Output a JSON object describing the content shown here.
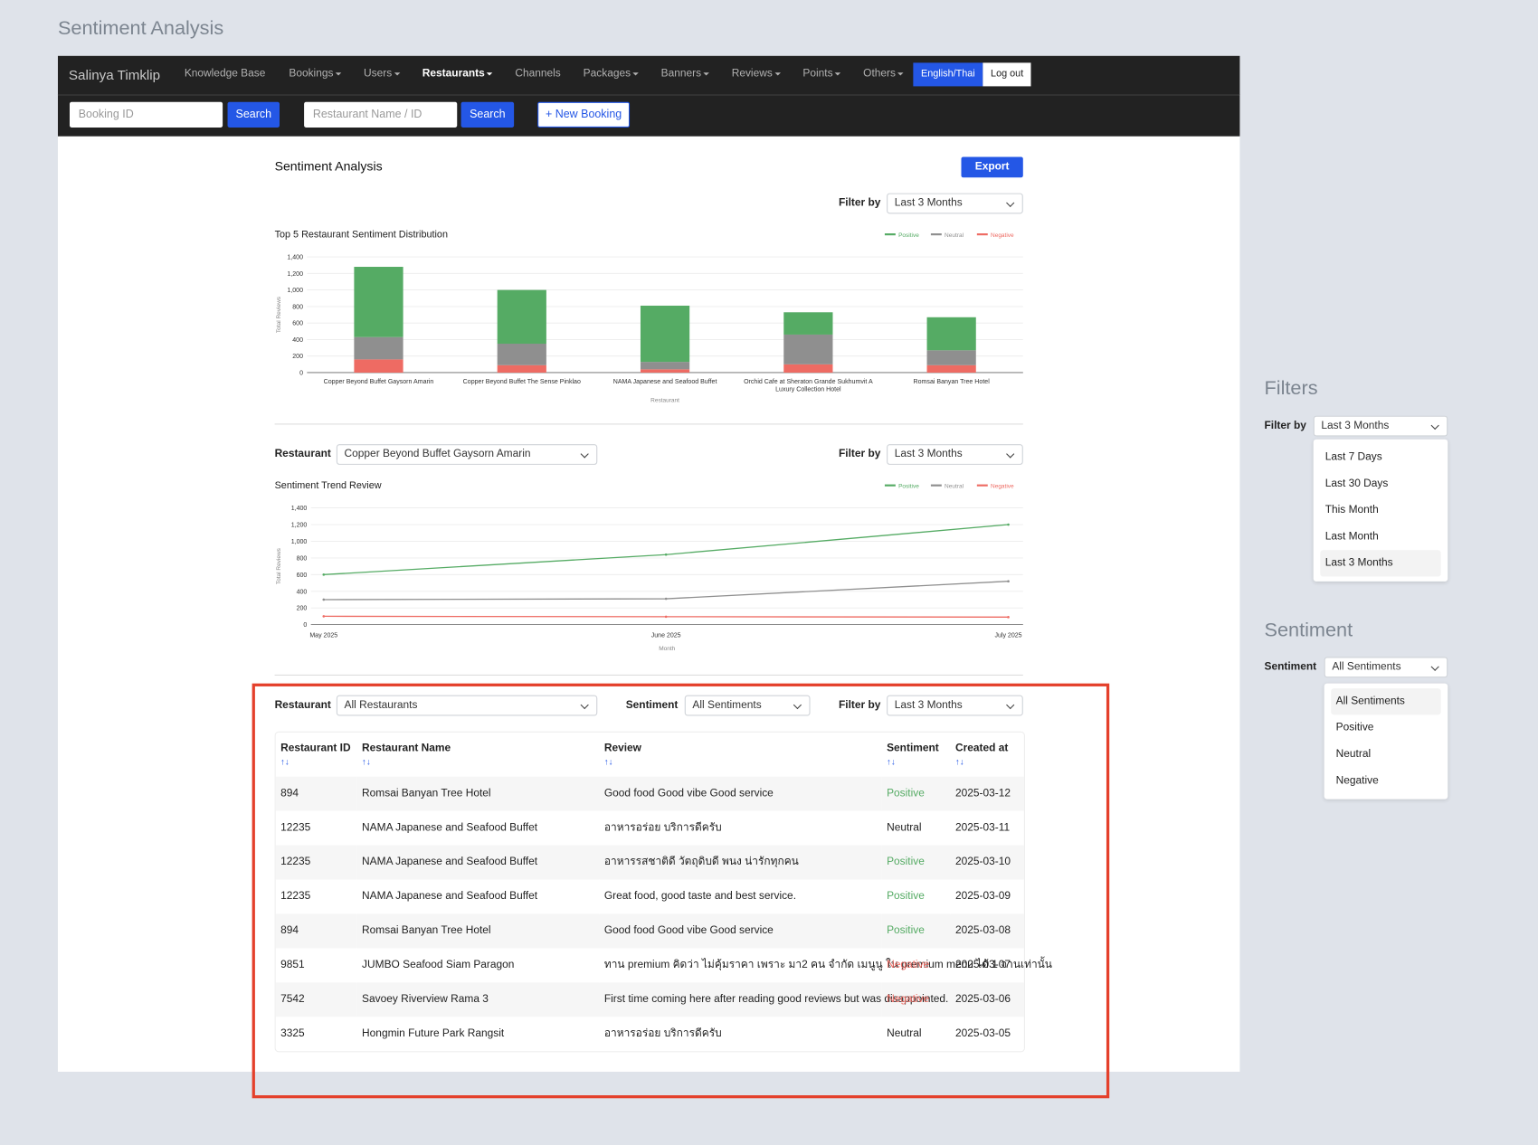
{
  "page_title": "Sentiment Analysis",
  "navbar": {
    "brand": "Salinya Timklip",
    "items": [
      {
        "label": "Knowledge Base",
        "dropdown": false,
        "active": false
      },
      {
        "label": "Bookings",
        "dropdown": true,
        "active": false
      },
      {
        "label": "Users",
        "dropdown": true,
        "active": false
      },
      {
        "label": "Restaurants",
        "dropdown": true,
        "active": true
      },
      {
        "label": "Channels",
        "dropdown": false,
        "active": false
      },
      {
        "label": "Packages",
        "dropdown": true,
        "active": false
      },
      {
        "label": "Banners",
        "dropdown": true,
        "active": false
      },
      {
        "label": "Reviews",
        "dropdown": true,
        "active": false
      },
      {
        "label": "Points",
        "dropdown": true,
        "active": false
      },
      {
        "label": "Others",
        "dropdown": true,
        "active": false
      }
    ],
    "language": "English/Thai",
    "logout": "Log out"
  },
  "searchbar": {
    "booking_placeholder": "Booking ID",
    "booking_search": "Search",
    "restaurant_placeholder": "Restaurant Name / ID",
    "restaurant_search": "Search",
    "new_booking": "+ New Booking"
  },
  "header": {
    "title": "Sentiment Analysis",
    "export": "Export",
    "filter_label": "Filter by",
    "filter_value": "Last 3 Months"
  },
  "distribution_chart": {
    "type": "bar",
    "title": "Top 5 Restaurant Sentiment Distribution",
    "y_label": "Total Reviews",
    "x_label": "Restaurant",
    "categories": [
      "Copper Beyond Buffet Gaysorn Amarin",
      "Copper Beyond Buffet The Sense Pinklao",
      "NAMA Japanese and Seafood Buffet",
      "Orchid Cafe at Sheraton Grande Sukhumvit A Luxury Collection Hotel",
      "Romsai Banyan Tree Hotel"
    ],
    "series": [
      {
        "name": "Positive",
        "color": "#55ab64",
        "values": [
          850,
          650,
          680,
          270,
          400
        ]
      },
      {
        "name": "Neutral",
        "color": "#8f8f8f",
        "values": [
          270,
          260,
          90,
          360,
          180
        ]
      },
      {
        "name": "Negative",
        "color": "#ee6b63",
        "values": [
          160,
          90,
          40,
          100,
          90
        ]
      }
    ],
    "ylim": [
      0,
      1400
    ],
    "yticks": [
      0,
      200,
      400,
      600,
      800,
      {
        "value": 1000,
        "label": "1,000"
      },
      {
        "value": 1200,
        "label": "1,200"
      },
      {
        "value": 1400,
        "label": "1,400"
      }
    ],
    "grid": true
  },
  "trend_filters": {
    "restaurant_label": "Restaurant",
    "restaurant_value": "Copper Beyond Buffet Gaysorn Amarin",
    "filter_label": "Filter by",
    "filter_value": "Last 3 Months"
  },
  "trend_chart": {
    "type": "line",
    "title": "Sentiment Trend Review",
    "y_label": "Total Reviews",
    "x_label": "Month",
    "categories": [
      "May 2025",
      "June 2025",
      "July 2025"
    ],
    "series": [
      {
        "name": "Positive",
        "color": "#55ab64",
        "values": [
          600,
          840,
          1200
        ]
      },
      {
        "name": "Neutral",
        "color": "#8f8f8f",
        "values": [
          300,
          310,
          520
        ]
      },
      {
        "name": "Negative",
        "color": "#ee6b63",
        "values": [
          100,
          95,
          90
        ]
      }
    ],
    "ylim": [
      0,
      1400
    ],
    "yticks": [
      0,
      200,
      400,
      600,
      800,
      {
        "value": 1000,
        "label": "1,000"
      },
      {
        "value": 1200,
        "label": "1,200"
      },
      {
        "value": 1400,
        "label": "1,400"
      }
    ],
    "grid": true
  },
  "table_filters": {
    "restaurant_label": "Restaurant",
    "restaurant_value": "All Restaurants",
    "sentiment_label": "Sentiment",
    "sentiment_value": "All Sentiments",
    "filter_label": "Filter by",
    "filter_value": "Last 3 Months"
  },
  "table": {
    "sort_icon": "↑↓",
    "columns": [
      "Restaurant ID",
      "Restaurant Name",
      "Review",
      "Sentiment",
      "Created at"
    ],
    "rows": [
      [
        894,
        "Romsai Banyan Tree Hotel",
        "Good food Good vibe Good service",
        "Positive",
        "2025-03-12"
      ],
      [
        12235,
        "NAMA Japanese and Seafood Buffet",
        "อาหารอร่อย บริการดีครับ",
        "Neutral",
        "2025-03-11"
      ],
      [
        12235,
        "NAMA Japanese and Seafood Buffet",
        "อาหารรสชาติดี วัตถุดิบดี พนง น่ารักทุกคน",
        "Positive",
        "2025-03-10"
      ],
      [
        12235,
        "NAMA Japanese and Seafood Buffet",
        "Great food, good taste and best service.",
        "Positive",
        "2025-03-09"
      ],
      [
        894,
        "Romsai Banyan Tree Hotel",
        "Good food Good vibe Good service",
        "Positive",
        "2025-03-08"
      ],
      [
        9851,
        "JUMBO Seafood Siam Paragon",
        "ทาน premium คิดว่า ไม่คุ้มราคา เพราะ มา2 คน จำกัด เมนูนู ใน premium menu ได้ 1 จานเท่านั้น",
        "Negative",
        "2025-03-07"
      ],
      [
        7542,
        "Savoey Riverview Rama 3",
        "First time coming here after reading good reviews but was disappointed.",
        "Negative",
        "2025-03-06"
      ],
      [
        3325,
        "Hongmin Future Park Rangsit",
        "อาหารอร่อย บริการดีครับ",
        "Neutral",
        "2025-03-05"
      ]
    ]
  },
  "side_filters": {
    "title": "Filters",
    "label": "Filter by",
    "value": "Last 3 Months",
    "options": [
      "Last 7 Days",
      "Last 30 Days",
      "This Month",
      "Last Month",
      "Last 3 Months"
    ]
  },
  "side_sentiment": {
    "title": "Sentiment",
    "label": "Sentiment",
    "value": "All Sentiments",
    "options": [
      "All Sentiments",
      "Positive",
      "Neutral",
      "Negative"
    ]
  }
}
